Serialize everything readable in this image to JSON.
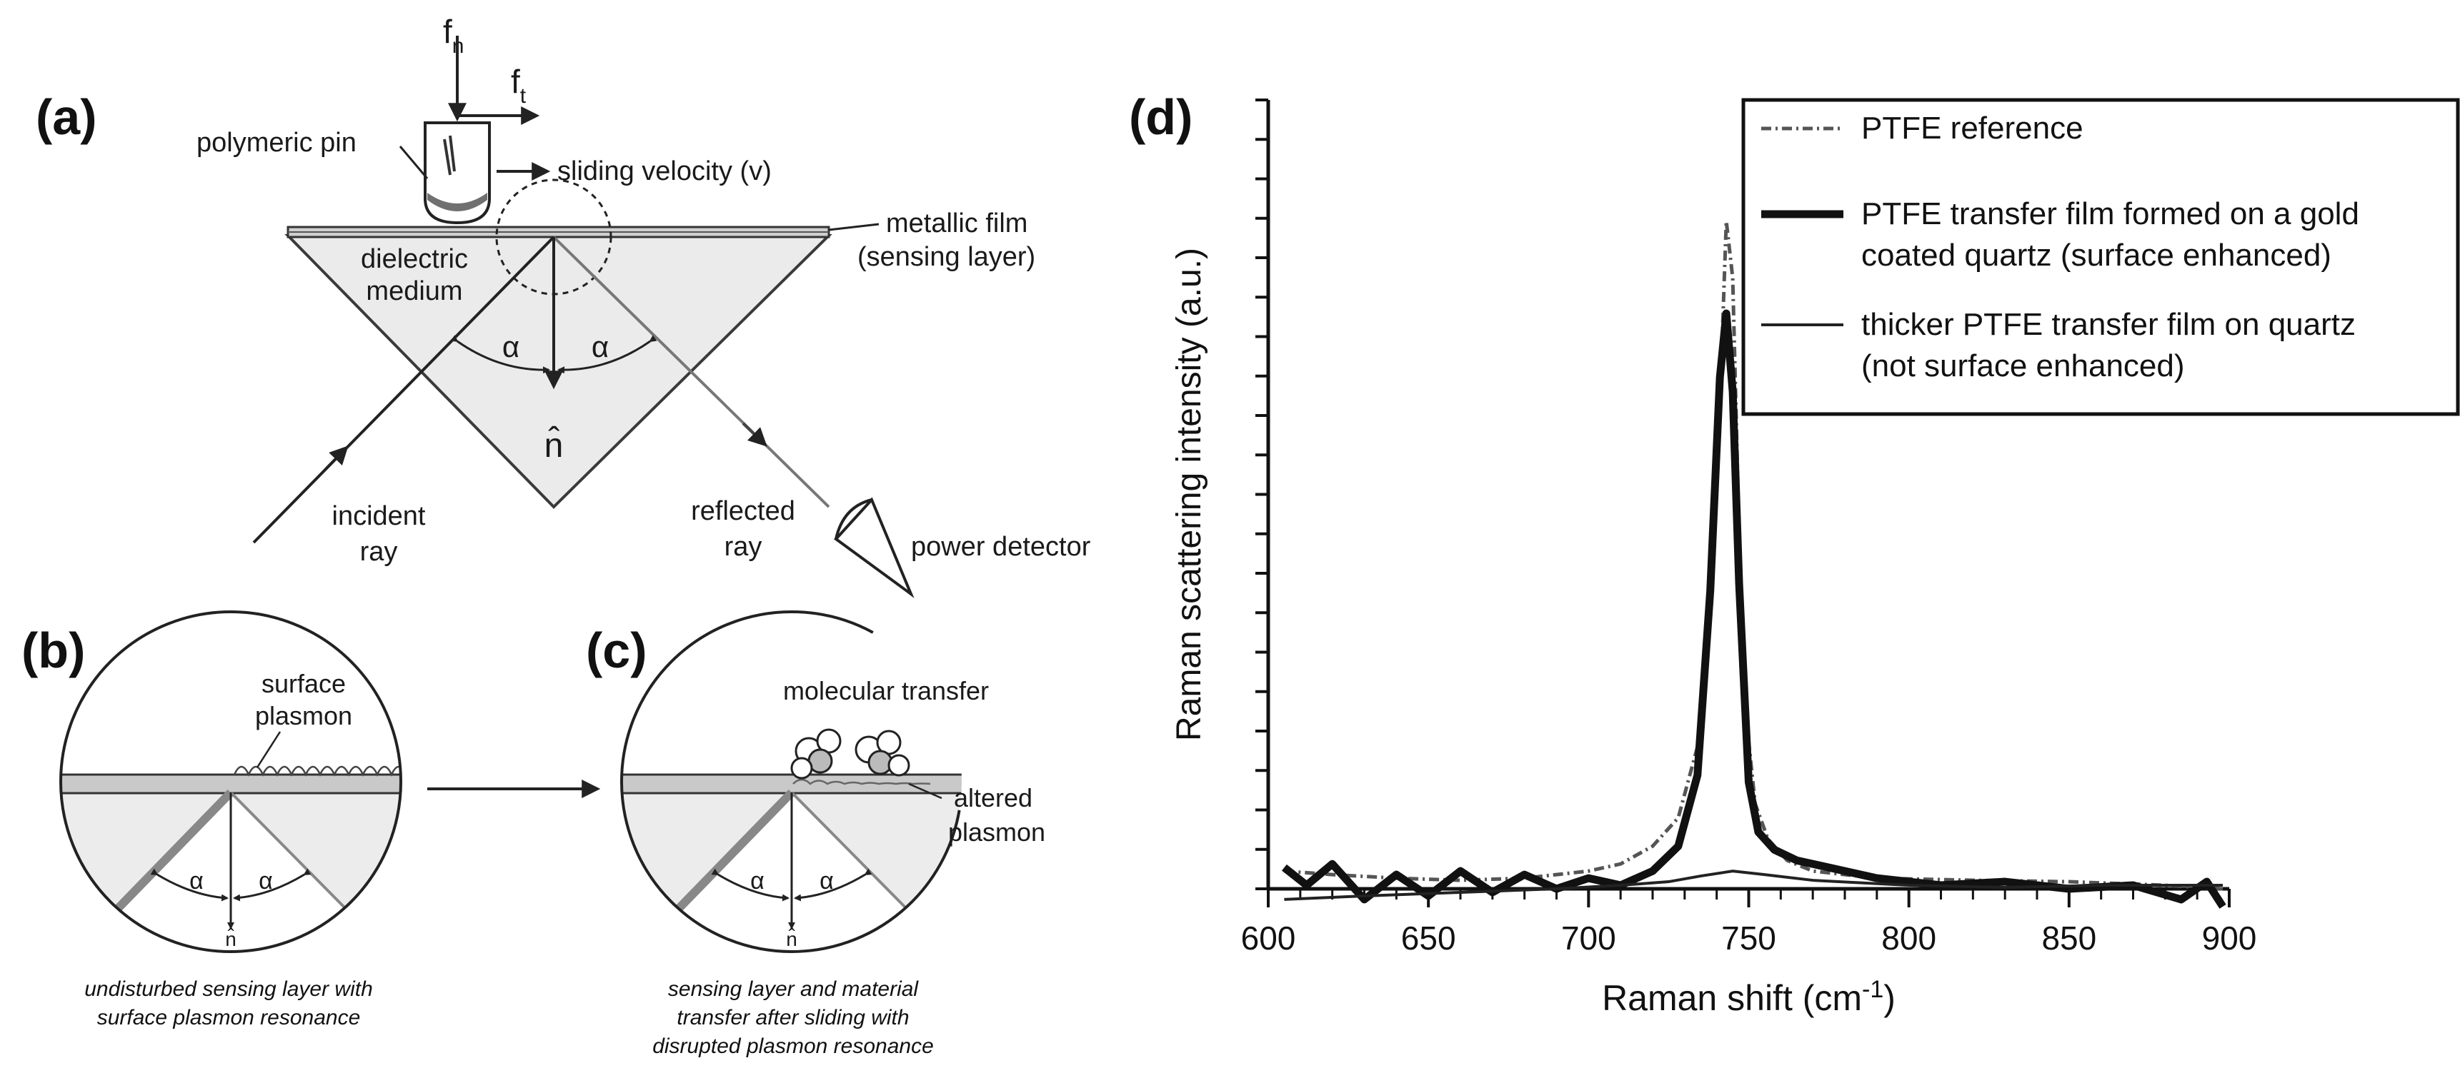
{
  "panel_a": {
    "label": "(a)",
    "force_normal": "f",
    "force_normal_sub": "n",
    "force_tangential": "f",
    "force_tangential_sub": "t",
    "pin_label": "polymeric pin",
    "velocity_label": "sliding velocity (v)",
    "film_label_1": "metallic film",
    "film_label_2": "(sensing layer)",
    "medium_label_1": "dielectric",
    "medium_label_2": "medium",
    "angle_left": "α",
    "angle_right": "α",
    "normal_label": "n̂",
    "incident_1": "incident",
    "incident_2": "ray",
    "reflected_1": "reflected",
    "reflected_2": "ray",
    "detector_label": "power detector"
  },
  "panel_b": {
    "label": "(b)",
    "plasmon_1": "surface",
    "plasmon_2": "plasmon",
    "angle_left": "α",
    "angle_right": "α",
    "normal_label": "n̂",
    "caption_1": "undisturbed sensing layer with",
    "caption_2": "surface plasmon resonance"
  },
  "panel_c": {
    "label": "(c)",
    "transfer_label": "molecular transfer",
    "altered_1": "altered",
    "altered_2": "plasmon",
    "angle_left": "α",
    "angle_right": "α",
    "normal_label": "n̂",
    "caption_1": "sensing layer and material",
    "caption_2": "transfer after sliding with",
    "caption_3": "disrupted plasmon resonance"
  },
  "panel_d": {
    "label": "(d)"
  },
  "chart_data": {
    "type": "line",
    "xlabel": "Raman shift (cm",
    "xlabel_sup": "-1",
    "xlabel_end": ")",
    "ylabel": "Raman scattering intensity (a.u.)",
    "xlim": [
      600,
      900
    ],
    "ylim": [
      0,
      10
    ],
    "x_ticks": [
      "600",
      "650",
      "700",
      "750",
      "800",
      "850",
      "900"
    ],
    "legend": [
      "PTFE reference",
      "PTFE transfer film formed on a gold coated quartz (surface enhanced)",
      "thicker PTFE transfer film on quartz (not surface enhanced)"
    ],
    "legend_lines": [
      [
        "PTFE reference"
      ],
      [
        "PTFE transfer film formed on a gold",
        "coated quartz (surface enhanced)"
      ],
      [
        "thicker PTFE transfer film on quartz",
        "(not surface enhanced)"
      ]
    ],
    "series": [
      {
        "name": "PTFE reference",
        "style": "dash-dot",
        "x": [
          605,
          620,
          640,
          660,
          680,
          700,
          710,
          720,
          728,
          734,
          738,
          741,
          743,
          745,
          747,
          749,
          752,
          756,
          762,
          770,
          790,
          820,
          850,
          880,
          898
        ],
        "y": [
          0.25,
          0.2,
          0.15,
          0.12,
          0.15,
          0.25,
          0.35,
          0.6,
          1.0,
          2.0,
          4.0,
          6.8,
          9.4,
          8.6,
          5.0,
          2.5,
          1.2,
          0.7,
          0.4,
          0.25,
          0.15,
          0.12,
          0.1,
          0.05,
          0.0
        ]
      },
      {
        "name": "PTFE transfer film formed on a gold coated quartz (surface enhanced)",
        "style": "thick",
        "x": [
          605,
          612,
          620,
          630,
          640,
          650,
          660,
          670,
          680,
          690,
          700,
          710,
          720,
          728,
          734,
          738,
          741,
          743,
          745,
          747,
          750,
          753,
          758,
          765,
          775,
          790,
          810,
          830,
          850,
          870,
          885,
          893,
          898
        ],
        "y": [
          0.3,
          0.05,
          0.35,
          -0.15,
          0.2,
          -0.1,
          0.25,
          -0.05,
          0.2,
          0.0,
          0.15,
          0.05,
          0.25,
          0.6,
          1.6,
          4.2,
          7.2,
          8.1,
          7.0,
          4.3,
          1.5,
          0.8,
          0.55,
          0.4,
          0.3,
          0.15,
          0.05,
          0.1,
          0.0,
          0.05,
          -0.15,
          0.1,
          -0.25
        ]
      },
      {
        "name": "thicker PTFE transfer film on quartz (not surface enhanced)",
        "style": "thin",
        "x": [
          605,
          630,
          660,
          690,
          710,
          725,
          735,
          745,
          755,
          770,
          800,
          830,
          860,
          898
        ],
        "y": [
          -0.15,
          -0.1,
          -0.05,
          0.0,
          0.05,
          0.1,
          0.18,
          0.25,
          0.2,
          0.12,
          0.05,
          0.02,
          0.05,
          0.05
        ]
      }
    ]
  }
}
